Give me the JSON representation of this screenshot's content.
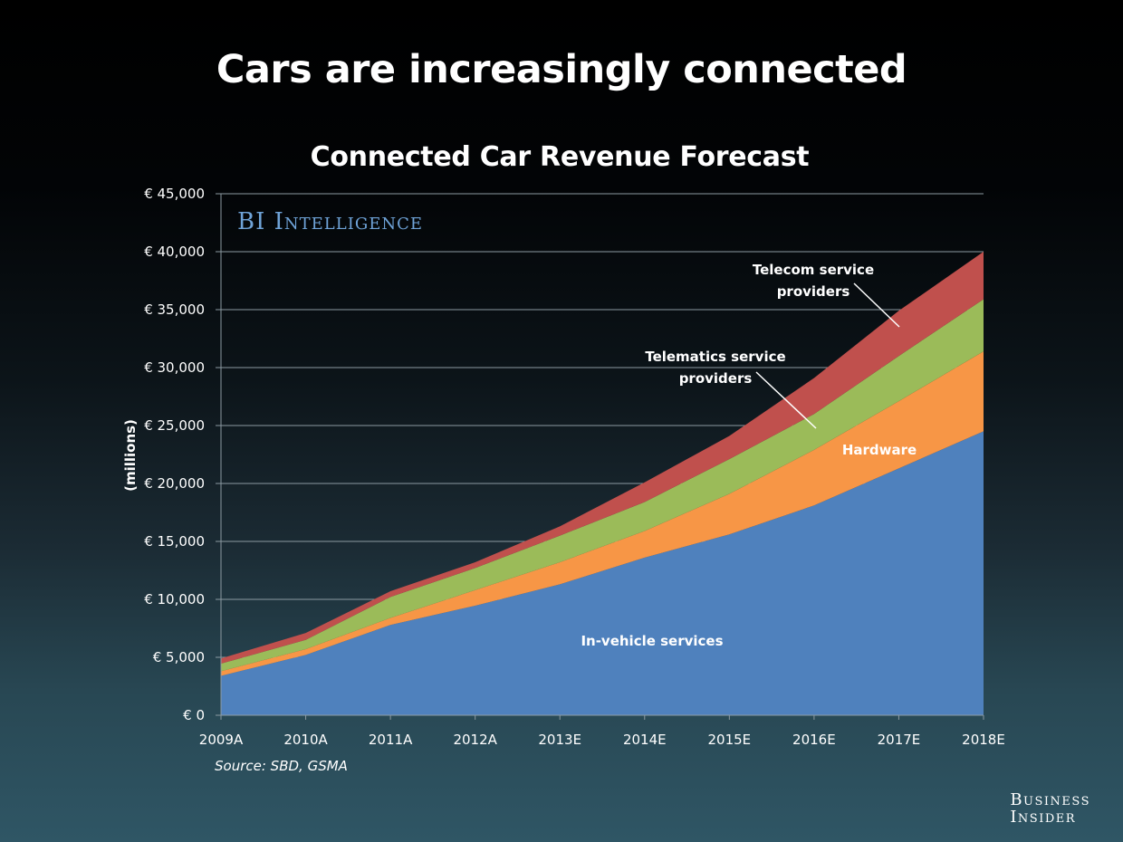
{
  "slide": {
    "title": "Cars are increasingly connected",
    "watermark": "BI Intelligence",
    "source": "Source: SBD, GSMA",
    "brand_line1": "Business",
    "brand_line2": "Insider"
  },
  "chart_data": {
    "type": "area",
    "stacked": true,
    "title": "Connected Car Revenue Forecast",
    "xlabel": "",
    "ylabel": "(millions)",
    "ylim": [
      0,
      45000
    ],
    "yticks": [
      0,
      5000,
      10000,
      15000,
      20000,
      25000,
      30000,
      35000,
      40000,
      45000
    ],
    "ytick_labels": [
      "€ 0",
      "€ 5,000",
      "€ 10,000",
      "€ 15,000",
      "€ 20,000",
      "€ 25,000",
      "€ 30,000",
      "€ 35,000",
      "€ 40,000",
      "€ 45,000"
    ],
    "grid": true,
    "legend": "inline annotations",
    "categories": [
      "2009A",
      "2010A",
      "2011A",
      "2012A",
      "2013E",
      "2014E",
      "2015E",
      "2016E",
      "2017E",
      "2018E"
    ],
    "series": [
      {
        "name": "In-vehicle services",
        "color": "#4f81bd",
        "values": [
          3400,
          5200,
          7800,
          9450,
          11300,
          13600,
          15600,
          18100,
          21300,
          24500
        ]
      },
      {
        "name": "Hardware",
        "color": "#f79646",
        "values": [
          400,
          500,
          600,
          1350,
          1900,
          2300,
          3500,
          4800,
          5800,
          6900
        ]
      },
      {
        "name": "Telematics service providers",
        "color": "#9bbb59",
        "values": [
          650,
          800,
          1800,
          1900,
          2300,
          2500,
          3000,
          3100,
          3900,
          4500
        ]
      },
      {
        "name": "Telecom service providers",
        "color": "#c0504d",
        "values": [
          450,
          600,
          500,
          500,
          800,
          1700,
          2000,
          3100,
          3900,
          4100
        ]
      }
    ],
    "annotations": [
      {
        "series": "Telecom service providers",
        "line1": "Telecom service",
        "line2": "providers"
      },
      {
        "series": "Telematics service providers",
        "line1": "Telematics service",
        "line2": "providers"
      },
      {
        "series": "Hardware",
        "line1": "Hardware"
      },
      {
        "series": "In-vehicle services",
        "line1": "In-vehicle services"
      }
    ]
  }
}
